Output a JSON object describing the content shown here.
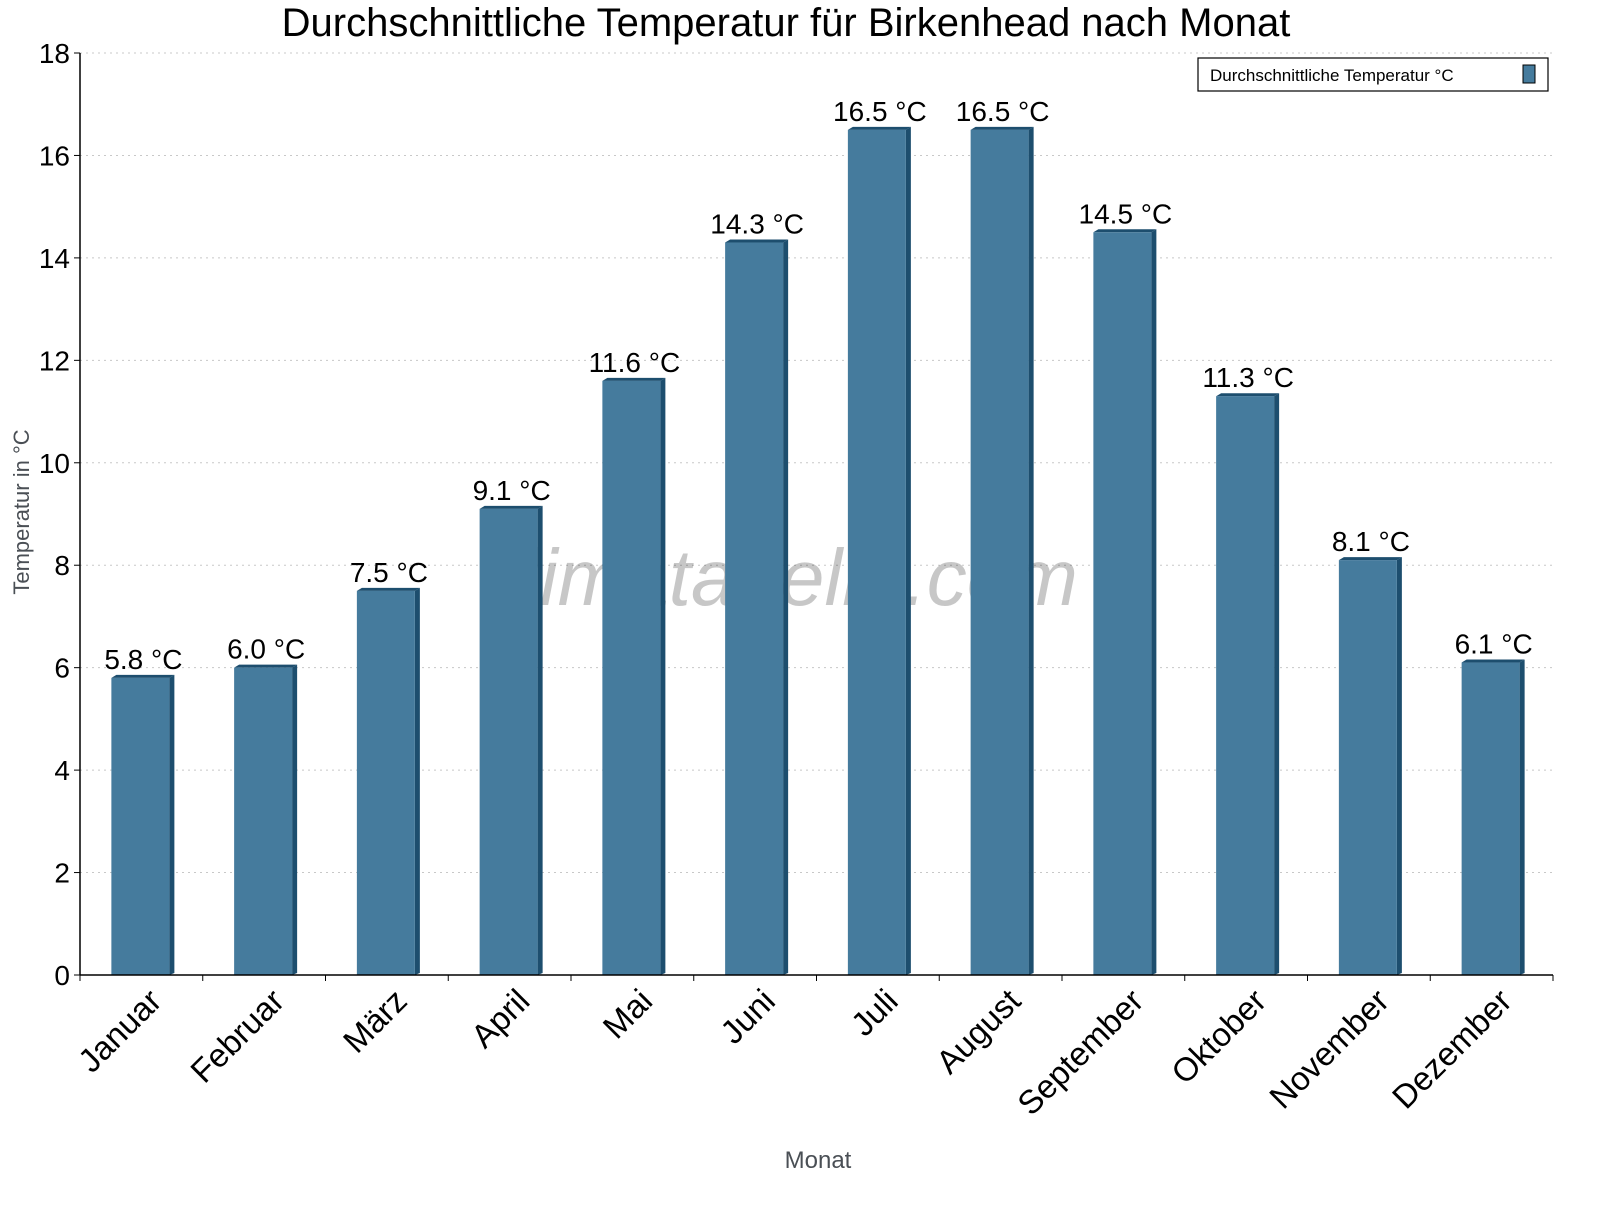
{
  "chart_data": {
    "type": "bar",
    "title": "Durchschnittliche Temperatur für Birkenhead nach Monat",
    "xlabel": "Monat",
    "ylabel": "Temperatur in °C",
    "ylim": [
      0,
      18
    ],
    "yticks": [
      0,
      2,
      4,
      6,
      8,
      10,
      12,
      14,
      16,
      18
    ],
    "grid": true,
    "legend_position": "top-right",
    "watermark": "klimatabelle.com",
    "categories": [
      "Januar",
      "Februar",
      "März",
      "April",
      "Mai",
      "Juni",
      "Juli",
      "August",
      "September",
      "Oktober",
      "November",
      "Dezember"
    ],
    "series": [
      {
        "name": "Durchschnittliche Temperatur °C",
        "values": [
          5.8,
          6.0,
          7.5,
          9.1,
          11.6,
          14.3,
          16.5,
          16.5,
          14.5,
          11.3,
          8.1,
          6.1
        ],
        "labels": [
          "5.8 °C",
          "6.0 °C",
          "7.5 °C",
          "9.1 °C",
          "11.6 °C",
          "14.3 °C",
          "16.5 °C",
          "16.5 °C",
          "14.5 °C",
          "11.3 °C",
          "8.1 °C",
          "6.1 °C"
        ],
        "color": "#457b9d",
        "side_color": "#1d4e6e"
      }
    ]
  }
}
